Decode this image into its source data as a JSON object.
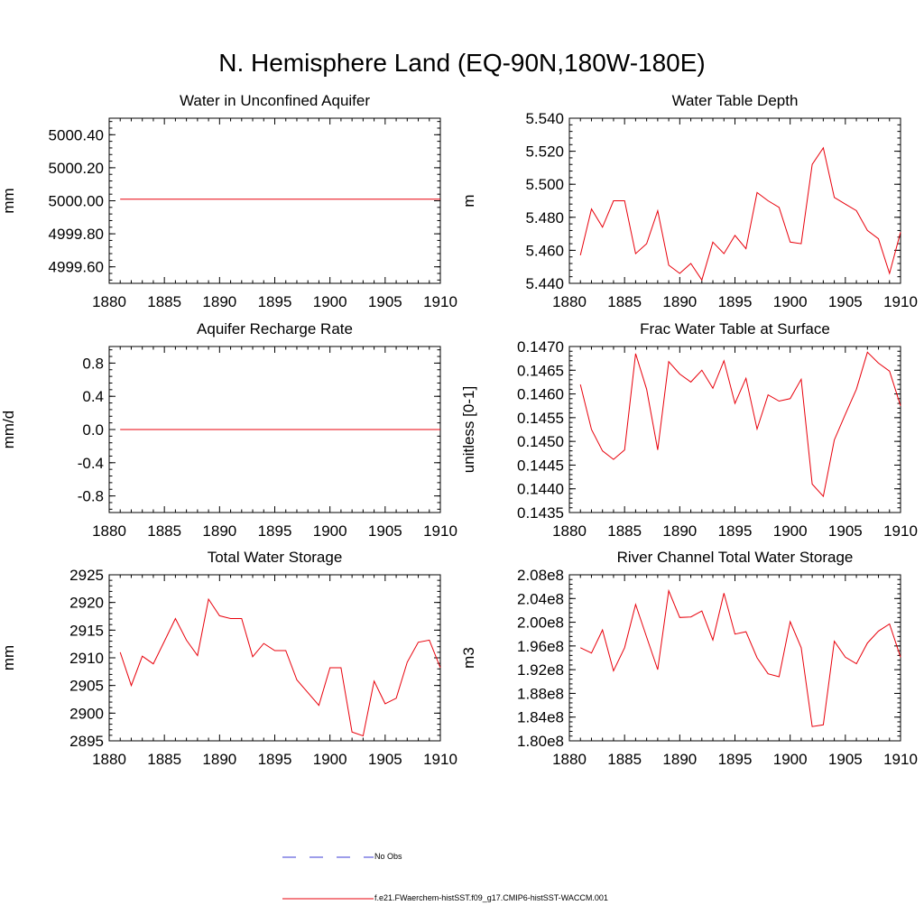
{
  "figure": {
    "title": "N. Hemisphere Land (EQ-90N,180W-180E)",
    "line_color": "#e8000b",
    "obs_color": "#3b3bd6"
  },
  "legend": {
    "entries": [
      {
        "label": "No Obs",
        "style": "dashed",
        "color": "#3b3bd6"
      },
      {
        "label": "f.e21.FWaerchem-histSST.f09_g17.CMIP6-histSST-WACCM.001",
        "style": "solid",
        "color": "#e8000b"
      }
    ]
  },
  "chart_data": [
    {
      "type": "line",
      "title": "Water in Unconfined Aquifer",
      "ylabel": "mm",
      "xlim": [
        1880,
        1910
      ],
      "ylim": [
        4999.5,
        5000.5
      ],
      "xticks": [
        "1880",
        "1885",
        "1890",
        "1895",
        "1900",
        "1905",
        "1910"
      ],
      "yticks": [
        4999.6,
        4999.8,
        5000.0,
        5000.2,
        5000.4
      ],
      "ytick_labels": [
        "4999.60",
        "4999.80",
        "5000.00",
        "5000.20",
        "5000.40"
      ],
      "series": [
        {
          "x": [
            1881,
            1910
          ],
          "values": [
            5000.01,
            5000.01
          ]
        }
      ]
    },
    {
      "type": "line",
      "title": "Water Table Depth",
      "ylabel": "m",
      "xlim": [
        1880,
        1910
      ],
      "ylim": [
        5.44,
        5.54
      ],
      "xticks": [
        "1880",
        "1885",
        "1890",
        "1895",
        "1900",
        "1905",
        "1910"
      ],
      "yticks": [
        5.44,
        5.46,
        5.48,
        5.5,
        5.52,
        5.54
      ],
      "ytick_labels": [
        "5.440",
        "5.460",
        "5.480",
        "5.500",
        "5.520",
        "5.540"
      ],
      "series": [
        {
          "x": [
            1881,
            1882,
            1883,
            1884,
            1885,
            1886,
            1887,
            1888,
            1889,
            1890,
            1891,
            1892,
            1893,
            1894,
            1895,
            1896,
            1897,
            1898,
            1899,
            1900,
            1901,
            1902,
            1903,
            1904,
            1905,
            1906,
            1907,
            1908,
            1909,
            1910
          ],
          "values": [
            5.457,
            5.485,
            5.474,
            5.49,
            5.49,
            5.458,
            5.464,
            5.484,
            5.451,
            5.446,
            5.452,
            5.442,
            5.465,
            5.458,
            5.469,
            5.461,
            5.495,
            5.49,
            5.486,
            5.465,
            5.464,
            5.512,
            5.522,
            5.492,
            5.488,
            5.484,
            5.472,
            5.467,
            5.446,
            5.471
          ]
        }
      ]
    },
    {
      "type": "line",
      "title": "Aquifer Recharge Rate",
      "ylabel": "mm/d",
      "xlim": [
        1880,
        1910
      ],
      "ylim": [
        -1.0,
        1.0
      ],
      "xticks": [
        "1880",
        "1885",
        "1890",
        "1895",
        "1900",
        "1905",
        "1910"
      ],
      "yticks": [
        -0.8,
        -0.4,
        0.0,
        0.4,
        0.8
      ],
      "ytick_labels": [
        "-0.8",
        "-0.4",
        "0.0",
        "0.4",
        "0.8"
      ],
      "series": [
        {
          "x": [
            1881,
            1910
          ],
          "values": [
            0.0,
            0.0
          ]
        }
      ]
    },
    {
      "type": "line",
      "title": "Frac Water Table at Surface",
      "ylabel": "unitless [0-1]",
      "xlim": [
        1880,
        1910
      ],
      "ylim": [
        0.1435,
        0.147
      ],
      "xticks": [
        "1880",
        "1885",
        "1890",
        "1895",
        "1900",
        "1905",
        "1910"
      ],
      "yticks": [
        0.1435,
        0.144,
        0.1445,
        0.145,
        0.1455,
        0.146,
        0.1465,
        0.147
      ],
      "ytick_labels": [
        "0.1435",
        "0.1440",
        "0.1445",
        "0.1450",
        "0.1455",
        "0.1460",
        "0.1465",
        "0.1470"
      ],
      "series": [
        {
          "x": [
            1881,
            1882,
            1883,
            1884,
            1885,
            1886,
            1887,
            1888,
            1889,
            1890,
            1891,
            1892,
            1893,
            1894,
            1895,
            1896,
            1897,
            1898,
            1899,
            1900,
            1901,
            1902,
            1903,
            1904,
            1905,
            1906,
            1907,
            1908,
            1909,
            1910
          ],
          "values": [
            0.1462,
            0.14525,
            0.1448,
            0.14462,
            0.14482,
            0.14685,
            0.1461,
            0.14482,
            0.14668,
            0.14642,
            0.14625,
            0.1465,
            0.14612,
            0.1467,
            0.1458,
            0.14633,
            0.14526,
            0.14598,
            0.14585,
            0.1459,
            0.14631,
            0.1441,
            0.14384,
            0.14503,
            0.14557,
            0.1461,
            0.14688,
            0.14665,
            0.14648,
            0.14575
          ]
        }
      ]
    },
    {
      "type": "line",
      "title": "Total Water Storage",
      "ylabel": "mm",
      "xlim": [
        1880,
        1910
      ],
      "ylim": [
        2895,
        2925
      ],
      "xticks": [
        "1880",
        "1885",
        "1890",
        "1895",
        "1900",
        "1905",
        "1910"
      ],
      "yticks": [
        2895,
        2900,
        2905,
        2910,
        2915,
        2920,
        2925
      ],
      "ytick_labels": [
        "2895",
        "2900",
        "2905",
        "2910",
        "2915",
        "2920",
        "2925"
      ],
      "series": [
        {
          "x": [
            1881,
            1882,
            1883,
            1884,
            1885,
            1886,
            1887,
            1888,
            1889,
            1890,
            1891,
            1892,
            1893,
            1894,
            1895,
            1896,
            1897,
            1898,
            1899,
            1900,
            1901,
            1902,
            1903,
            1904,
            1905,
            1906,
            1907,
            1908,
            1909,
            1910
          ],
          "values": [
            2911.0,
            2905.0,
            2910.3,
            2908.9,
            2913.0,
            2917.1,
            2913.2,
            2910.4,
            2920.6,
            2917.6,
            2917.1,
            2917.1,
            2910.2,
            2912.6,
            2911.3,
            2911.3,
            2906.0,
            2903.7,
            2901.4,
            2908.2,
            2908.2,
            2896.6,
            2895.9,
            2905.8,
            2901.7,
            2902.7,
            2909.2,
            2912.8,
            2913.2,
            2908.2
          ]
        }
      ]
    },
    {
      "type": "line",
      "title": "River Channel Total Water Storage",
      "ylabel": "m3",
      "xlim": [
        1880,
        1910
      ],
      "ylim": [
        180000000.0,
        208000000.0
      ],
      "xticks": [
        "1880",
        "1885",
        "1890",
        "1895",
        "1900",
        "1905",
        "1910"
      ],
      "yticks": [
        180000000.0,
        184000000.0,
        188000000.0,
        192000000.0,
        196000000.0,
        200000000.0,
        204000000.0,
        208000000.0
      ],
      "ytick_labels": [
        "1.80e8",
        "1.84e8",
        "1.88e8",
        "1.92e8",
        "1.96e8",
        "2.00e8",
        "2.04e8",
        "2.08e8"
      ],
      "series": [
        {
          "x": [
            1881,
            1882,
            1883,
            1884,
            1885,
            1886,
            1887,
            1888,
            1889,
            1890,
            1891,
            1892,
            1893,
            1894,
            1895,
            1896,
            1897,
            1898,
            1899,
            1900,
            1901,
            1902,
            1903,
            1904,
            1905,
            1906,
            1907,
            1908,
            1909,
            1910
          ],
          "values": [
            195700000.0,
            194800000.0,
            198700000.0,
            191800000.0,
            195700000.0,
            203000000.0,
            197500000.0,
            192000000.0,
            205300000.0,
            200800000.0,
            200900000.0,
            201900000.0,
            197000000.0,
            204900000.0,
            198000000.0,
            198400000.0,
            194000000.0,
            191300000.0,
            190800000.0,
            200100000.0,
            195700000.0,
            182400000.0,
            182700000.0,
            196800000.0,
            194100000.0,
            193000000.0,
            196500000.0,
            198500000.0,
            199700000.0,
            194100000.0
          ]
        }
      ]
    }
  ]
}
